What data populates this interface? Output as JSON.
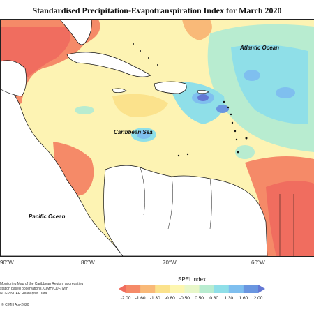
{
  "title": "Standardised Precipitation-Evapotranspiration Index for March 2020",
  "labels": {
    "atlantic": "Atlantic Ocean",
    "caribbean": "Caribbean Sea",
    "pacific": "Pacific Ocean"
  },
  "longitudes": [
    "90°W",
    "80°W",
    "70°W",
    "60°W"
  ],
  "footer": {
    "text": "Monitoring Map of the Caribbean Region, aggregating station based observations, CIMH/CDF, with NCEP/NCAR Reanalysis Data",
    "credit": "© CIMH Apr-2020"
  },
  "legend": {
    "title": "SPEI Index",
    "ticks": [
      "-2.00",
      "-1.60",
      "-1.30",
      "-0.80",
      "-0.50",
      "0.50",
      "0.80",
      "1.30",
      "1.60",
      "2.00"
    ],
    "colors": [
      "#f06d5f",
      "#f58a68",
      "#f9b978",
      "#fbe28c",
      "#fdf6b0",
      "#e8f7c9",
      "#b8ecd0",
      "#8fdfe8",
      "#7fbfef",
      "#6a96e0",
      "#6478d4"
    ]
  },
  "colors": {
    "very_dry": "#f06d5f",
    "dry": "#f58a68",
    "moderately_dry": "#f9b978",
    "slightly_dry": "#fbe28c",
    "near_normal": "#fdf6b0",
    "slightly_wet": "#b8ecd0",
    "moderately_wet": "#8fdfe8",
    "wet": "#7fbfef",
    "very_wet": "#6478d4"
  }
}
